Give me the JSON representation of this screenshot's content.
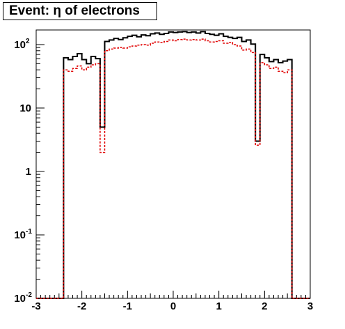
{
  "chart_data": {
    "type": "histogram",
    "title": "Event: η of electrons",
    "xlabel": "",
    "ylabel": "",
    "xlim": [
      -3,
      3
    ],
    "ylim": [
      0.01,
      170
    ],
    "yscale": "log",
    "x_ticks": [
      {
        "value": -3,
        "label": "-3"
      },
      {
        "value": -2,
        "label": "-2"
      },
      {
        "value": -1,
        "label": "-1"
      },
      {
        "value": 0,
        "label": "0"
      },
      {
        "value": 1,
        "label": "1"
      },
      {
        "value": 2,
        "label": "2"
      },
      {
        "value": 3,
        "label": "3"
      }
    ],
    "y_ticks": [
      {
        "value": 0.01,
        "base": "10",
        "exp": "-2"
      },
      {
        "value": 0.1,
        "base": "10",
        "exp": "-1"
      },
      {
        "value": 1,
        "base": "1",
        "exp": ""
      },
      {
        "value": 10,
        "base": "10",
        "exp": ""
      },
      {
        "value": 100,
        "base": "10",
        "exp": "2"
      }
    ],
    "bin_edges_start": -3,
    "bin_width": 0.1,
    "series": [
      {
        "style": "solid",
        "color": "#000000",
        "values": [
          0.01,
          0.01,
          0.01,
          0.01,
          0.01,
          0.01,
          62,
          58,
          65,
          72,
          58,
          50,
          65,
          60,
          5,
          112,
          118,
          125,
          120,
          128,
          135,
          140,
          133,
          142,
          138,
          148,
          152,
          145,
          150,
          158,
          155,
          158,
          160,
          155,
          158,
          152,
          160,
          150,
          145,
          140,
          148,
          135,
          130,
          125,
          130,
          112,
          118,
          102,
          3,
          70,
          62,
          54,
          58,
          52,
          55,
          58,
          0.01,
          0.01,
          0.01,
          0.01
        ]
      },
      {
        "style": "dashed",
        "color": "#e00000",
        "values": [
          0.01,
          0.01,
          0.01,
          0.01,
          0.01,
          0.01,
          40,
          38,
          42,
          46,
          40,
          44,
          48,
          50,
          2,
          80,
          85,
          88,
          90,
          88,
          92,
          95,
          98,
          100,
          98,
          105,
          110,
          108,
          112,
          118,
          115,
          120,
          122,
          118,
          120,
          118,
          122,
          115,
          110,
          112,
          115,
          105,
          108,
          100,
          95,
          82,
          85,
          75,
          2.6,
          52,
          48,
          42,
          44,
          38,
          36,
          40,
          0.01,
          0.01,
          0.01,
          0.01
        ]
      }
    ],
    "grid": false,
    "legend": "none"
  }
}
